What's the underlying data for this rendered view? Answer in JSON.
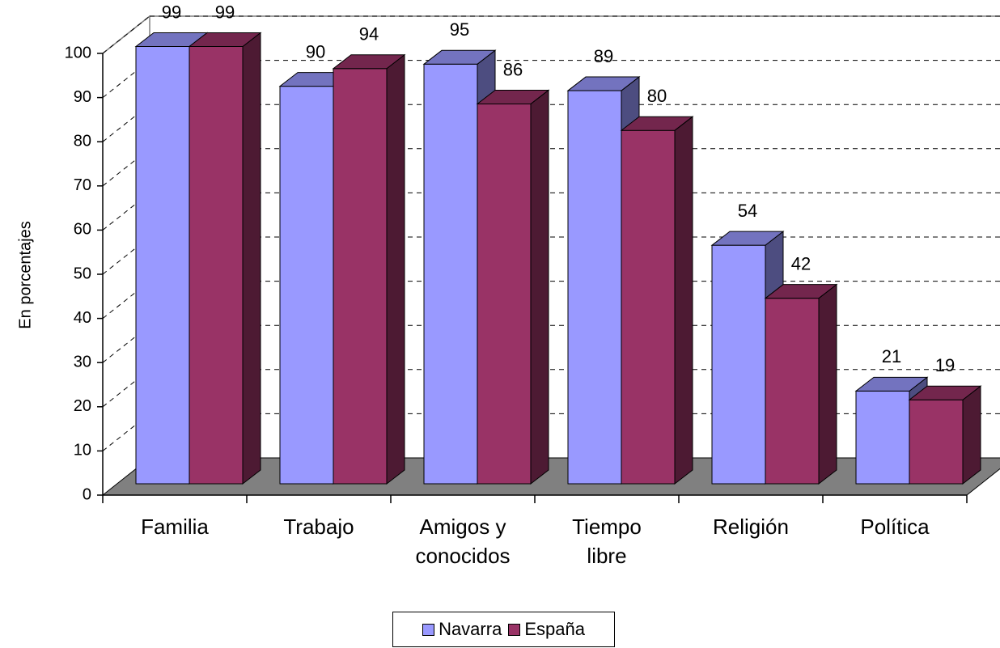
{
  "chart_data": {
    "type": "bar3d",
    "y_axis_label": "En porcentajes",
    "categories": [
      "Familia",
      "Trabajo",
      "Amigos y conocidos",
      "Tiempo libre",
      "Religión",
      "Política"
    ],
    "series": [
      {
        "name": "Navarra",
        "color": "#9999ff",
        "values": [
          99,
          90,
          95,
          89,
          54,
          21
        ]
      },
      {
        "name": "España",
        "color": "#993366",
        "values": [
          99,
          94,
          86,
          80,
          42,
          19
        ]
      }
    ],
    "ylim": [
      0,
      100
    ],
    "yticks": [
      0,
      10,
      20,
      30,
      40,
      50,
      60,
      70,
      80,
      90,
      100
    ],
    "grid": true,
    "legend": "bottom"
  }
}
